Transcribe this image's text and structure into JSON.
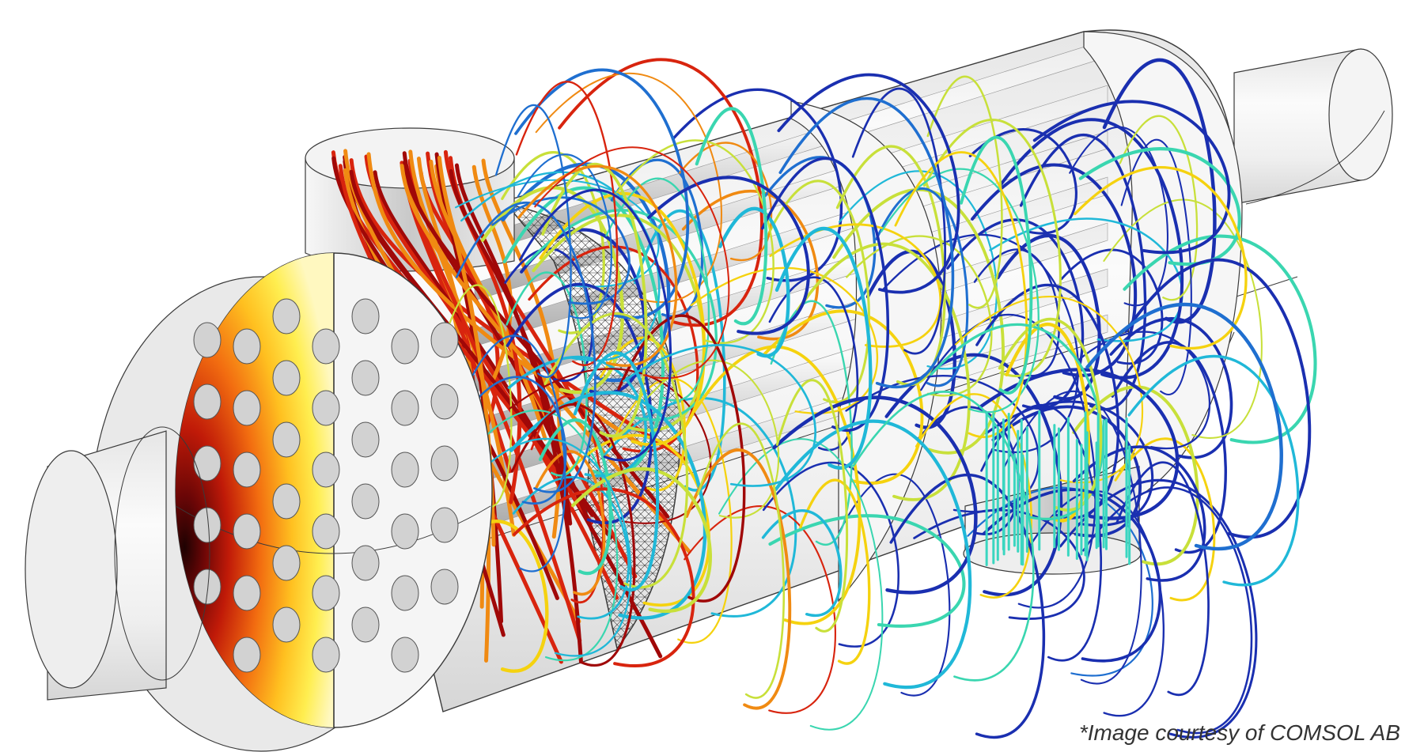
{
  "credit": "*Image courtesy of COMSOL AB",
  "colors": {
    "background": "#ffffff",
    "shell_light": "#f2f2f2",
    "shell_mid": "#d0d0d0",
    "outline": "#3a3a3a",
    "streamline_palette": [
      "#1a2fb0",
      "#1f6fd0",
      "#20b8d8",
      "#3ad6b0",
      "#c8e03a",
      "#f5d20f",
      "#f08a12",
      "#d8240e",
      "#a00808"
    ],
    "heat_palette": [
      "#fffbd0",
      "#ffe84a",
      "#ffb81e",
      "#f06a10",
      "#b81808",
      "#3a0404"
    ]
  },
  "icons": [
    "heat-exchanger-model",
    "tube-sheet",
    "baffle",
    "inlet-nozzle",
    "outlet-nozzle",
    "mesh-region",
    "streamlines"
  ]
}
